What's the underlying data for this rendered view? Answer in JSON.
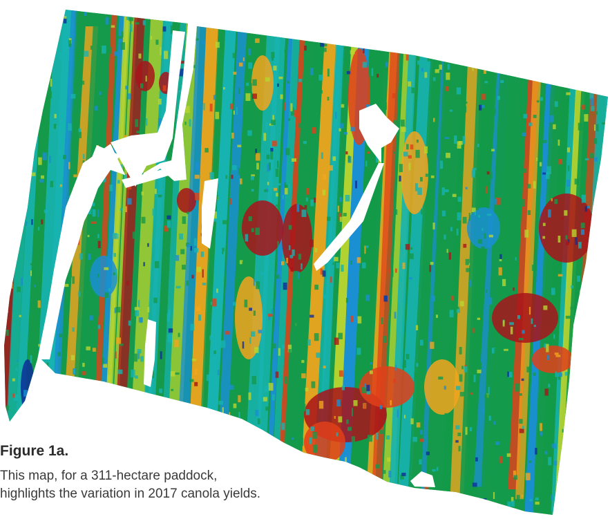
{
  "caption": {
    "title": "Figure 1a.",
    "line1": "This map, for a 311-hectare paddock,",
    "line2": "highlights the variation in 2017 canola yields."
  },
  "map": {
    "palette": {
      "very_low": "#0c2f9a",
      "low": "#1a8fd1",
      "below_average": "#17b3b0",
      "average": "#149a4a",
      "above_average": "#b9d430",
      "high": "#f2a51d",
      "very_high": "#e0401a",
      "highest": "#a8141a"
    }
  }
}
